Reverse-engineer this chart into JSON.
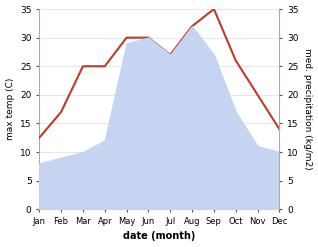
{
  "months": [
    "Jan",
    "Feb",
    "Mar",
    "Apr",
    "May",
    "Jun",
    "Jul",
    "Aug",
    "Sep",
    "Oct",
    "Nov",
    "Dec"
  ],
  "temperature": [
    12.5,
    17.0,
    25.0,
    25.0,
    30.0,
    30.0,
    27.0,
    32.0,
    35.0,
    26.0,
    20.0,
    14.0
  ],
  "precipitation": [
    8.0,
    9.0,
    10.0,
    12.0,
    29.0,
    30.0,
    27.0,
    32.0,
    27.0,
    17.0,
    11.0,
    10.0
  ],
  "temp_color": "#c0392b",
  "precip_color": "#c5d4f0",
  "ylim_left": [
    0,
    35
  ],
  "ylim_right": [
    0,
    35
  ],
  "ylabel_left": "max temp (C)",
  "ylabel_right": "med. precipitation (kg/m2)",
  "xlabel": "date (month)",
  "background_color": "#ffffff",
  "tick_color": "#555555",
  "spine_color": "#aaaaaa"
}
